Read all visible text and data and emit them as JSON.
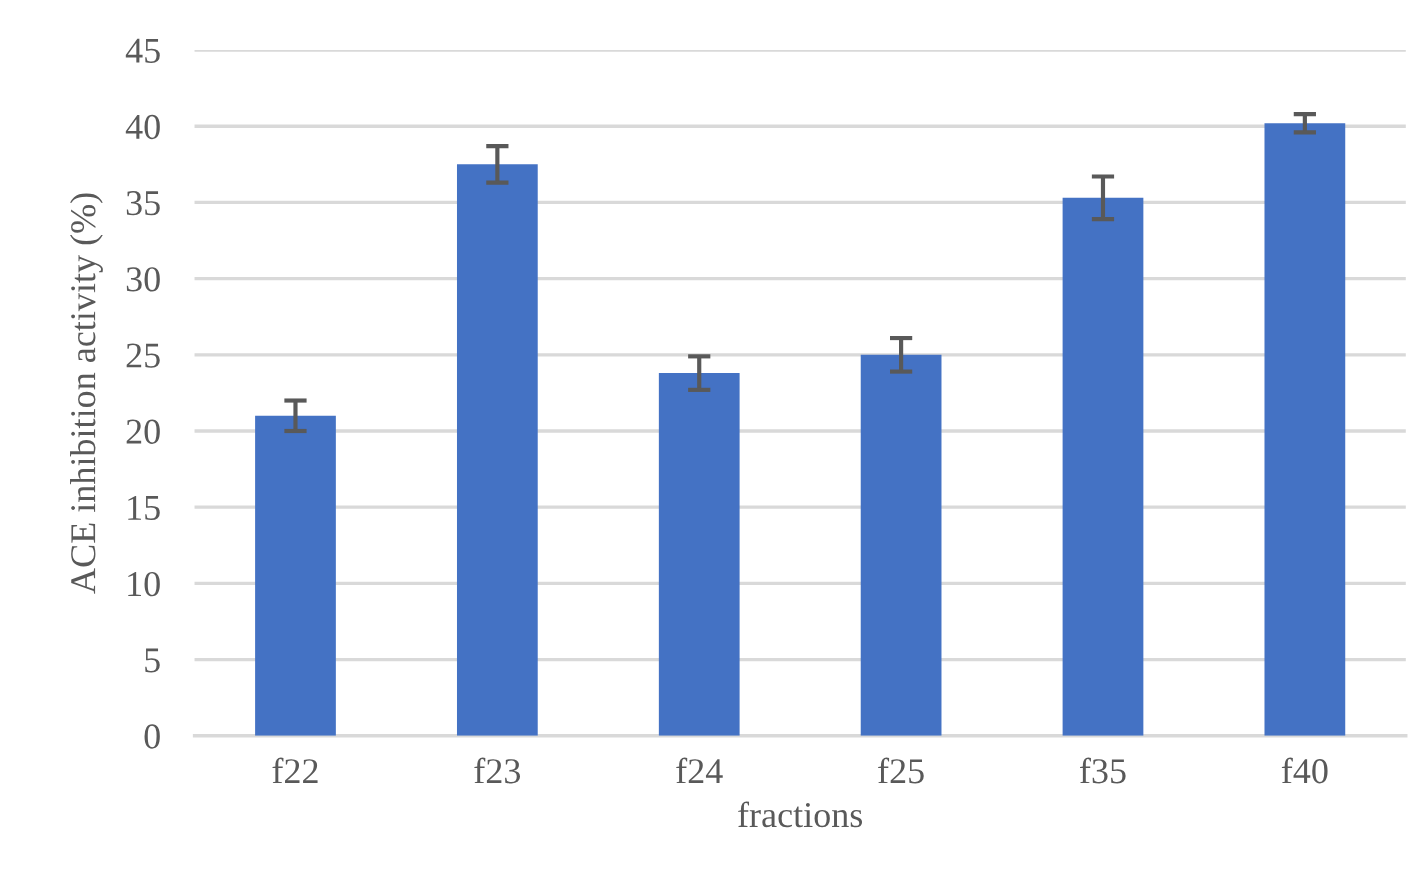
{
  "chart_data": {
    "type": "bar",
    "xlabel": "fractions",
    "ylabel": "ACE inhibition activity (%)",
    "categories": [
      "f22",
      "f23",
      "f24",
      "f25",
      "f35",
      "f40"
    ],
    "values": [
      21,
      37.5,
      23.8,
      25,
      35.3,
      40.2
    ],
    "errors": [
      1,
      1.2,
      1.1,
      1.1,
      1.4,
      0.6
    ],
    "color": "#4472c4",
    "ylim": [
      0,
      45
    ],
    "yticks": [
      0,
      5,
      10,
      15,
      20,
      25,
      30,
      35,
      40,
      45
    ],
    "grid": "y"
  }
}
